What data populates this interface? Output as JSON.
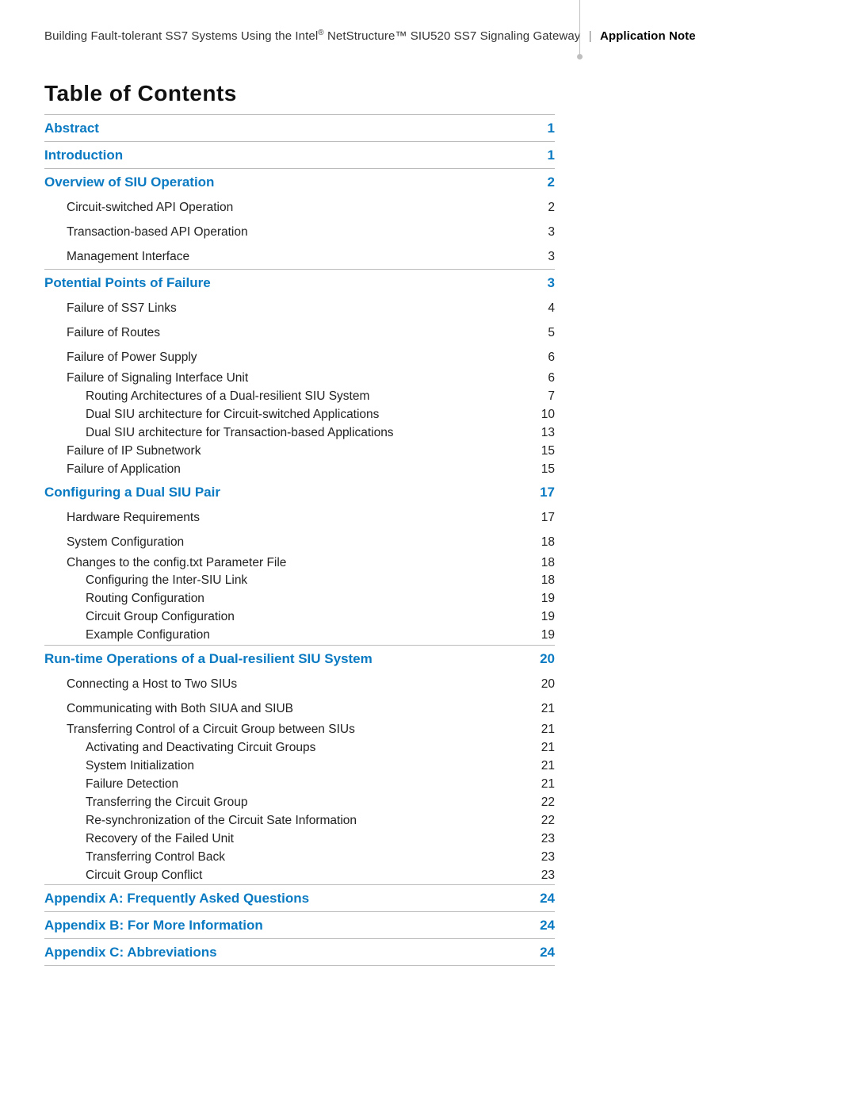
{
  "header": {
    "prefix": "Building Fault-tolerant SS7 Systems Using the Intel",
    "reg": "®",
    "mid": " NetStructure™ SIU520 SS7 Signaling Gateway",
    "category": "Application Note"
  },
  "title": "Table of Contents",
  "colors": {
    "link": "#0a7ac2",
    "text": "#222222",
    "rule": "#bbbbbb"
  },
  "toc": [
    {
      "type": "section",
      "label": "Abstract",
      "page": "1"
    },
    {
      "type": "rule"
    },
    {
      "type": "section",
      "label": "Introduction",
      "page": "1"
    },
    {
      "type": "rule"
    },
    {
      "type": "section",
      "label": "Overview of SIU Operation",
      "page": "2"
    },
    {
      "type": "sub1",
      "label": "Circuit-switched API Operation",
      "page": "2"
    },
    {
      "type": "sub1",
      "label": "Transaction-based API Operation",
      "page": "3"
    },
    {
      "type": "sub1",
      "label": "Management Interface",
      "page": "3"
    },
    {
      "type": "rule"
    },
    {
      "type": "section",
      "label": "Potential Points of Failure",
      "page": "3"
    },
    {
      "type": "sub1",
      "label": "Failure of SS7 Links",
      "page": "4"
    },
    {
      "type": "sub1",
      "label": "Failure of Routes",
      "page": "5"
    },
    {
      "type": "sub1",
      "label": "Failure of Power Supply",
      "page": "6"
    },
    {
      "type": "sub1",
      "tight": true,
      "label": "Failure of Signaling Interface Unit",
      "page": "6"
    },
    {
      "type": "sub2",
      "tight": true,
      "label": "Routing Architectures of a Dual-resilient SIU System",
      "page": "7"
    },
    {
      "type": "sub2",
      "tight": true,
      "label": "Dual SIU architecture for Circuit-switched Applications",
      "page": "10"
    },
    {
      "type": "sub2",
      "tight": true,
      "label": "Dual SIU architecture for Transaction-based Applications",
      "page": "13"
    },
    {
      "type": "sub1",
      "tight": true,
      "label": "Failure of IP Subnetwork",
      "page": "15"
    },
    {
      "type": "sub1",
      "tight": true,
      "label": "Failure of Application",
      "page": "15"
    },
    {
      "type": "section",
      "label": "Configuring a Dual SIU Pair",
      "page": "17"
    },
    {
      "type": "sub1",
      "label": "Hardware Requirements",
      "page": "17"
    },
    {
      "type": "sub1",
      "label": "System Configuration",
      "page": "18"
    },
    {
      "type": "sub1",
      "tight": true,
      "label": "Changes to the config.txt Parameter File",
      "page": "18"
    },
    {
      "type": "sub2",
      "tight": true,
      "label": "Configuring the Inter-SIU Link",
      "page": "18"
    },
    {
      "type": "sub2",
      "tight": true,
      "label": "Routing Configuration",
      "page": "19"
    },
    {
      "type": "sub2",
      "tight": true,
      "label": "Circuit Group Configuration",
      "page": "19"
    },
    {
      "type": "sub2",
      "tight": true,
      "label": "Example Configuration",
      "page": "19"
    },
    {
      "type": "rule"
    },
    {
      "type": "section",
      "label": "Run-time Operations of a Dual-resilient SIU System",
      "page": "20"
    },
    {
      "type": "sub1",
      "label": "Connecting a Host to Two SIUs",
      "page": "20"
    },
    {
      "type": "sub1",
      "label": "Communicating with Both SIUA and SIUB",
      "page": "21"
    },
    {
      "type": "sub1",
      "tight": true,
      "label": "Transferring Control of a Circuit Group between SIUs",
      "page": "21"
    },
    {
      "type": "sub2",
      "tight": true,
      "label": "Activating and Deactivating Circuit Groups",
      "page": "21"
    },
    {
      "type": "sub2",
      "tight": true,
      "label": "System Initialization",
      "page": "21"
    },
    {
      "type": "sub2",
      "tight": true,
      "label": "Failure Detection",
      "page": "21"
    },
    {
      "type": "sub2",
      "tight": true,
      "label": "Transferring the Circuit Group",
      "page": "22"
    },
    {
      "type": "sub2",
      "tight": true,
      "label": "Re-synchronization of the Circuit Sate Information",
      "page": "22"
    },
    {
      "type": "sub2",
      "tight": true,
      "label": "Recovery of the Failed Unit",
      "page": "23"
    },
    {
      "type": "sub2",
      "tight": true,
      "label": "Transferring Control Back",
      "page": "23"
    },
    {
      "type": "sub2",
      "tight": true,
      "label": "Circuit Group Conflict",
      "page": "23"
    },
    {
      "type": "rule"
    },
    {
      "type": "section",
      "label": "Appendix A: Frequently Asked Questions",
      "page": "24"
    },
    {
      "type": "rule"
    },
    {
      "type": "section",
      "label": "Appendix B: For More Information",
      "page": "24"
    },
    {
      "type": "rule"
    },
    {
      "type": "section",
      "label": "Appendix C: Abbreviations",
      "page": "24"
    },
    {
      "type": "rule"
    }
  ]
}
